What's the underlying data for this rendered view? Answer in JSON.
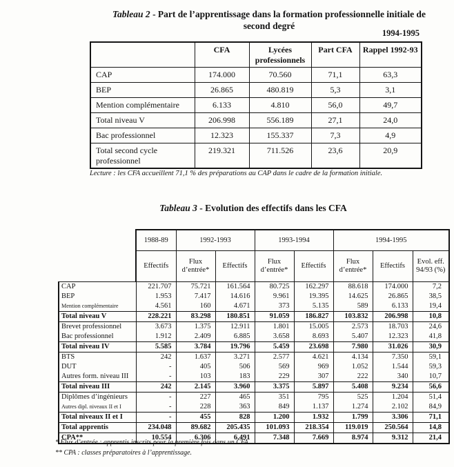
{
  "colors": {
    "ink": "#141414",
    "paper": "#fdfdfb"
  },
  "table2": {
    "title_em": "Tableau 2",
    "title_rest": " - Part de l’apprentissage dans la formation professionnelle initiale de second degré",
    "year_note": "1994-1995",
    "headers": [
      "",
      "CFA",
      "Lycées professionnels",
      "Part CFA",
      "Rappel 1992-93"
    ],
    "rows": [
      {
        "label": "CAP",
        "values": [
          "174.000",
          "70.560",
          "71,1",
          "63,3"
        ]
      },
      {
        "label": "BEP",
        "values": [
          "26.865",
          "480.819",
          "5,3",
          "3,1"
        ]
      },
      {
        "label": "Mention complémentaire",
        "values": [
          "6.133",
          "4.810",
          "56,0",
          "49,7"
        ]
      },
      {
        "label": "Total niveau V",
        "values": [
          "206.998",
          "556.189",
          "27,1",
          "24,0"
        ]
      },
      {
        "label": "Bac professionnel",
        "values": [
          "12.323",
          "155.337",
          "7,3",
          "4,9"
        ]
      },
      {
        "label": "Total second cycle professionnel",
        "values": [
          "219.321",
          "711.526",
          "23,6",
          "20,9"
        ]
      }
    ],
    "lecture": "Lecture : les CFA accueillent 71,1 % des préparations au CAP dans le cadre de la formation initiale."
  },
  "table3": {
    "title_em": "Tableau 3",
    "title_rest": " - Evolution des effectifs dans les CFA",
    "year_groups": [
      "1988-89",
      "1992-1993",
      "1993-1994",
      "1994-1995"
    ],
    "sub_headers": [
      "Effectifs",
      "Flux d’entrée*",
      "Effectifs",
      "Flux d’entrée*",
      "Effectifs",
      "Flux d’entrée*",
      "Effectifs",
      "Evol. eff. 94/93 (%)"
    ],
    "rows": [
      {
        "label": "CAP",
        "style": "normal",
        "values": [
          "221.707",
          "75.721",
          "161.564",
          "80.725",
          "162.297",
          "88.618",
          "174.000",
          "7,2"
        ]
      },
      {
        "label": "BEP",
        "style": "normal",
        "values": [
          "1.953",
          "7.417",
          "14.616",
          "9.961",
          "19.395",
          "14.625",
          "26.865",
          "38,5"
        ]
      },
      {
        "label": "Mention complémentaire",
        "style": "small",
        "values": [
          "4.561",
          "160",
          "4.671",
          "373",
          "5.135",
          "589",
          "6.133",
          "19,4"
        ]
      },
      {
        "label": "Total niveau V",
        "style": "total",
        "values": [
          "228.221",
          "83.298",
          "180.851",
          "91.059",
          "186.827",
          "103.832",
          "206.998",
          "10,8"
        ]
      },
      {
        "label": "Brevet professionnel",
        "style": "normal",
        "values": [
          "3.673",
          "1.375",
          "12.911",
          "1.801",
          "15.005",
          "2.573",
          "18.703",
          "24,6"
        ]
      },
      {
        "label": "Bac professionnel",
        "style": "normal",
        "values": [
          "1.912",
          "2.409",
          "6.885",
          "3.658",
          "8.693",
          "5.407",
          "12.323",
          "41,8"
        ]
      },
      {
        "label": "Total niveau IV",
        "style": "total",
        "values": [
          "5.585",
          "3.784",
          "19.796",
          "5.459",
          "23.698",
          "7.980",
          "31.026",
          "30,9"
        ]
      },
      {
        "label": "BTS",
        "style": "normal",
        "values": [
          "242",
          "1.637",
          "3.271",
          "2.577",
          "4.621",
          "4.134",
          "7.350",
          "59,1"
        ]
      },
      {
        "label": "DUT",
        "style": "normal",
        "values": [
          "-",
          "405",
          "506",
          "569",
          "969",
          "1.052",
          "1.544",
          "59,3"
        ]
      },
      {
        "label": "Autres form. niveau III",
        "style": "normal",
        "values": [
          "-",
          "103",
          "183",
          "229",
          "307",
          "222",
          "340",
          "10,7"
        ]
      },
      {
        "label": "Total niveau III",
        "style": "total",
        "values": [
          "242",
          "2.145",
          "3.960",
          "3.375",
          "5.897",
          "5.408",
          "9.234",
          "56,6"
        ]
      },
      {
        "label": "Diplômes d’ingénieurs",
        "style": "normal",
        "values": [
          "-",
          "227",
          "465",
          "351",
          "795",
          "525",
          "1.204",
          "51,4"
        ]
      },
      {
        "label": "Autres dipl. niveaux II et I",
        "style": "small",
        "values": [
          "-",
          "228",
          "363",
          "849",
          "1.137",
          "1.274",
          "2.102",
          "84,9"
        ]
      },
      {
        "label": "Total niveaux II et I",
        "style": "total",
        "values": [
          "-",
          "455",
          "828",
          "1.200",
          "1.932",
          "1.799",
          "3.306",
          "71,1"
        ]
      },
      {
        "label": "Total apprentis",
        "style": "total",
        "values": [
          "234.048",
          "89.682",
          "205.435",
          "101.093",
          "218.354",
          "119.019",
          "250.564",
          "14,8"
        ]
      },
      {
        "label": "CPA**",
        "style": "total",
        "values": [
          "10.554",
          "6.306",
          "6.491",
          "7.348",
          "7.669",
          "8.974",
          "9.312",
          "21,4"
        ]
      }
    ],
    "footnotes": [
      "* Flux d’entrée : apprentis inscrits pour la première fois dans un CFA.",
      "** CPA : classes préparatoires à l’apprentissage."
    ]
  }
}
